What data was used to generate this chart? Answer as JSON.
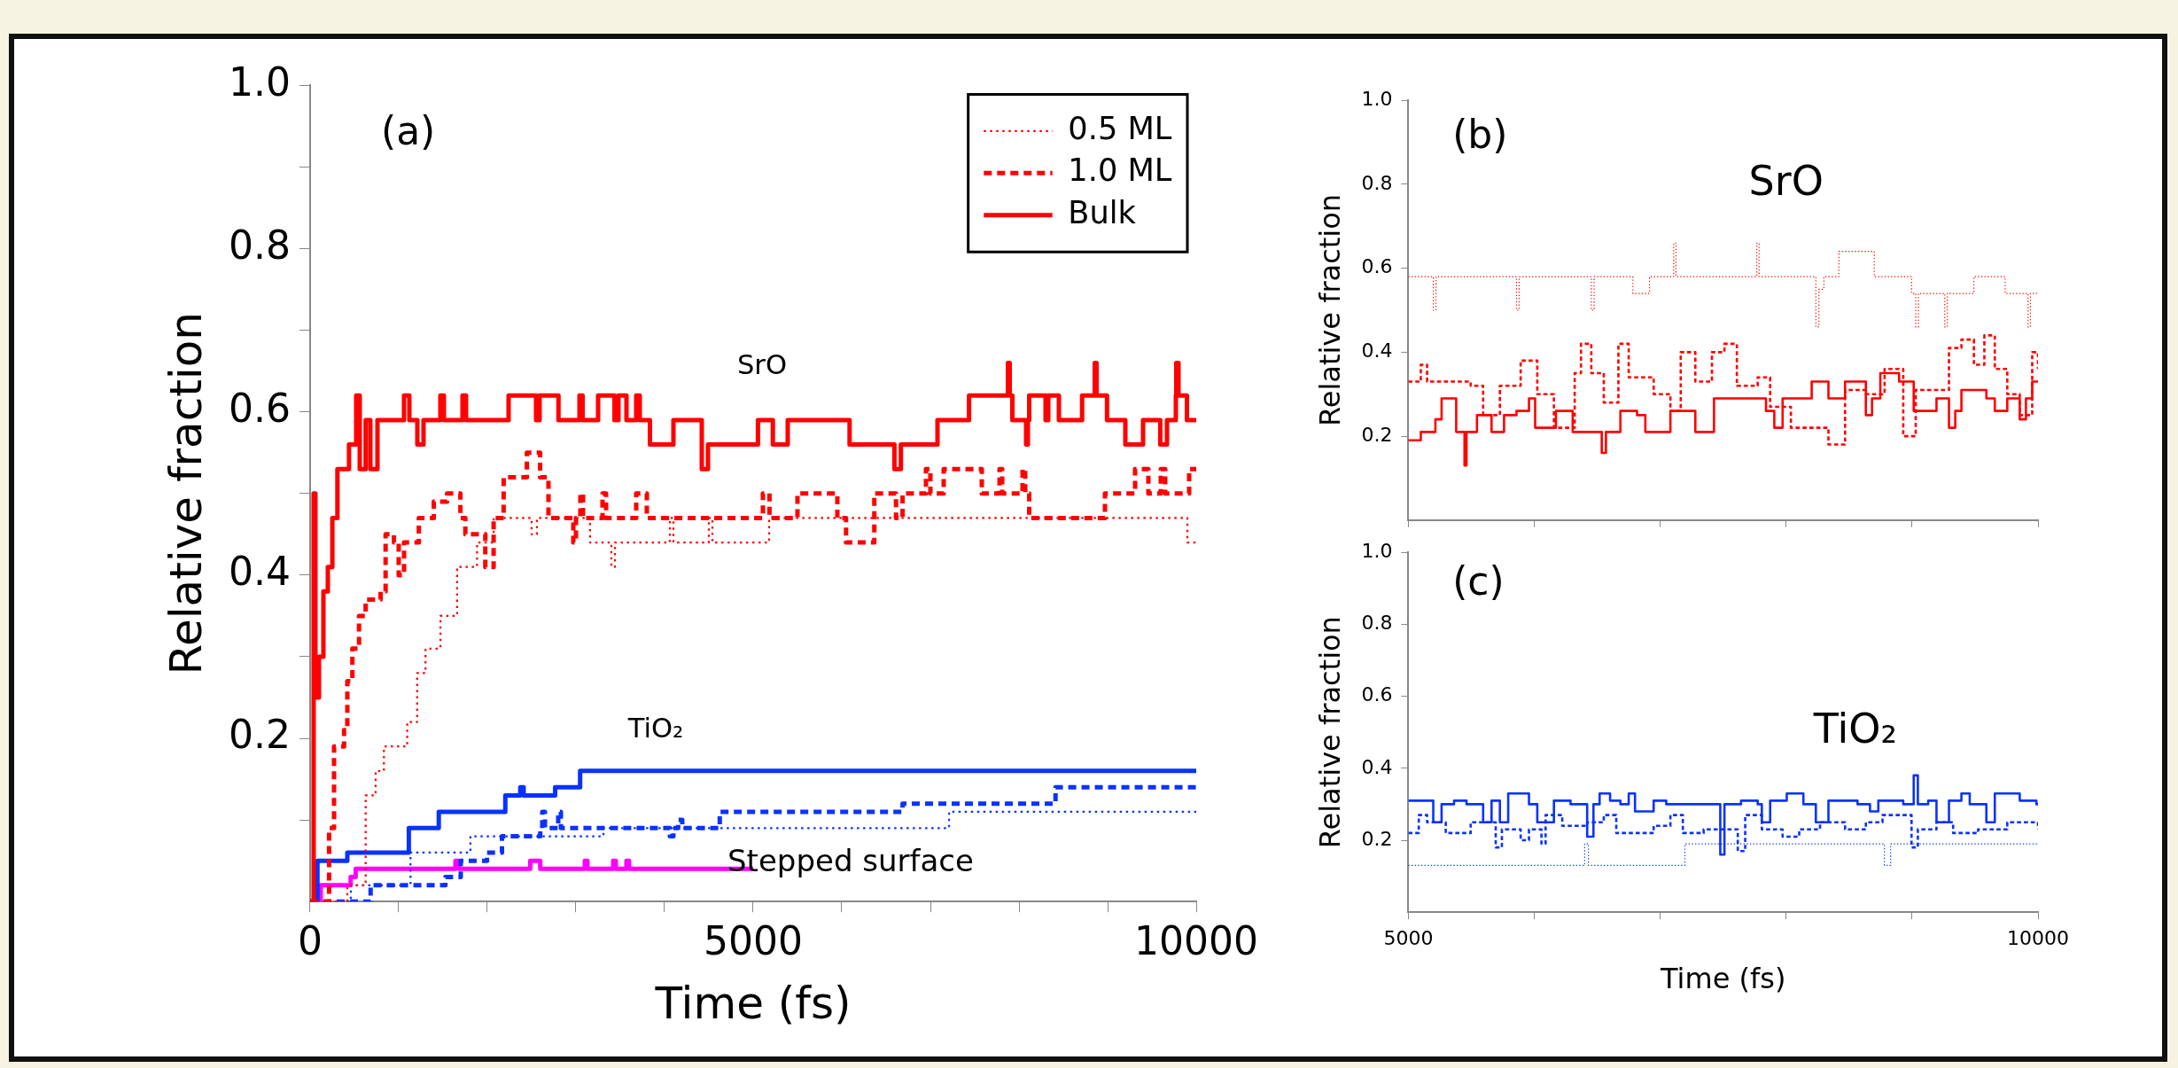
{
  "chart_data": [
    {
      "type": "step",
      "xlabel": "Time (fs)",
      "ylabel": "Relative fraction",
      "xlim": [
        0,
        10000
      ],
      "ylim": [
        0,
        1
      ],
      "xticks": [
        0,
        {
          "value": 1000,
          "label": null
        },
        {
          "value": 2000,
          "label": null
        },
        {
          "value": 3000,
          "label": null
        },
        {
          "value": 4000,
          "label": null
        },
        5000,
        {
          "value": 6000,
          "label": null
        },
        {
          "value": 7000,
          "label": null
        },
        {
          "value": 8000,
          "label": null
        },
        {
          "value": 9000,
          "label": null
        },
        10000
      ],
      "yticks": [
        {
          "value": 0.1,
          "label": null
        },
        0.2,
        {
          "value": 0.3,
          "label": null
        },
        0.4,
        {
          "value": 0.5,
          "label": null
        },
        0.6,
        {
          "value": 0.7,
          "label": null
        },
        0.8,
        {
          "value": 0.9,
          "label": null
        },
        {
          "value": 1,
          "label": "1.0"
        }
      ],
      "legend": "top right",
      "marker": "none",
      "annotations": [
        "(a)",
        "SrO",
        "TiO₂",
        "Stepped surface"
      ],
      "series": [
        {
          "name": "0.5 ML",
          "color": "#ff0000",
          "line_style": "dotted",
          "x": [
            0,
            420,
            627,
            739,
            833,
            1096,
            1208,
            1302,
            1471,
            1659,
            1884,
            2071,
            2500,
            2560,
            3159,
            3400,
            3440,
            4060,
            4100,
            4500,
            4540,
            5180,
            9900,
            10000
          ],
          "values": [
            0,
            0.02,
            0.13,
            0.16,
            0.19,
            0.22,
            0.28,
            0.31,
            0.35,
            0.41,
            0.44,
            0.47,
            0.45,
            0.47,
            0.44,
            0.41,
            0.44,
            0.47,
            0.44,
            0.47,
            0.44,
            0.47,
            0.44,
            0.44
          ]
        },
        {
          "name": "1.0 ML",
          "color": "#ff0000",
          "line_style": "dashed",
          "x": [
            0,
            214,
            270,
            383,
            420,
            477,
            552,
            627,
            795,
            852,
            946,
            1000,
            1060,
            1227,
            1396,
            1546,
            1696,
            1752,
            1977,
            2071,
            2184,
            2446,
            2596,
            2690,
            2970,
            3000,
            3050,
            3080,
            3300,
            3340,
            3680,
            3800,
            5110,
            5184,
            5500,
            5950,
            6048,
            6367,
            6612,
            6686,
            6950,
            7000,
            7150,
            7580,
            7780,
            7810,
            8040,
            8070,
            8115,
            8970,
            9310,
            9460,
            9600,
            9650,
            9920,
            10000
          ],
          "values": [
            0,
            0.09,
            0.19,
            0.21,
            0.27,
            0.31,
            0.35,
            0.37,
            0.38,
            0.45,
            0.44,
            0.4,
            0.44,
            0.47,
            0.49,
            0.5,
            0.47,
            0.45,
            0.41,
            0.47,
            0.52,
            0.55,
            0.52,
            0.47,
            0.44,
            0.47,
            0.5,
            0.47,
            0.5,
            0.47,
            0.5,
            0.47,
            0.5,
            0.47,
            0.5,
            0.47,
            0.44,
            0.5,
            0.47,
            0.5,
            0.53,
            0.5,
            0.53,
            0.5,
            0.53,
            0.5,
            0.53,
            0.5,
            0.47,
            0.5,
            0.53,
            0.5,
            0.53,
            0.5,
            0.53,
            0.53
          ]
        },
        {
          "name": "Bulk",
          "color": "#ff0000",
          "line_style": "solid",
          "x": [
            0,
            40,
            60,
            100,
            150,
            200,
            251,
            308,
            439,
            520,
            560,
            627,
            680,
            760,
            1060,
            1120,
            1210,
            1280,
            1470,
            1510,
            1720,
            1760,
            2240,
            2550,
            2590,
            2803,
            3040,
            3075,
            3250,
            3435,
            3480,
            3570,
            3680,
            3720,
            3835,
            4100,
            4420,
            4490,
            5054,
            5222,
            5390,
            6088,
            6594,
            6667,
            7080,
            7436,
            7875,
            7895,
            7925,
            8080,
            8100,
            8115,
            8300,
            8330,
            8450,
            8712,
            8855,
            8875,
            8993,
            9200,
            9400,
            9594,
            9670,
            9770,
            9775,
            9800,
            9895,
            10000
          ],
          "values": [
            0,
            0.5,
            0.25,
            0.3,
            0.38,
            0.41,
            0.47,
            0.53,
            0.56,
            0.62,
            0.53,
            0.59,
            0.53,
            0.59,
            0.62,
            0.59,
            0.56,
            0.59,
            0.62,
            0.59,
            0.62,
            0.59,
            0.62,
            0.59,
            0.62,
            0.59,
            0.62,
            0.59,
            0.62,
            0.59,
            0.62,
            0.59,
            0.62,
            0.59,
            0.56,
            0.59,
            0.53,
            0.56,
            0.59,
            0.56,
            0.59,
            0.56,
            0.53,
            0.56,
            0.59,
            0.62,
            0.66,
            0.62,
            0.59,
            0.56,
            0.59,
            0.62,
            0.59,
            0.62,
            0.59,
            0.62,
            0.66,
            0.62,
            0.59,
            0.56,
            0.59,
            0.56,
            0.59,
            0.62,
            0.66,
            0.62,
            0.59,
            0.59
          ]
        },
        {
          "color": "#0a32ff",
          "line_style": "dotted",
          "x": [
            0,
            460,
            1133,
            1809,
            3310,
            7211,
            10000
          ],
          "values": [
            0,
            0.02,
            0.06,
            0.08,
            0.09,
            0.11,
            0.11
          ]
        },
        {
          "color": "#0a32ff",
          "line_style": "dashed",
          "x": [
            0,
            683,
            1527,
            1700,
            1996,
            2165,
            2597,
            2620,
            2650,
            2800,
            2830,
            4060,
            4100,
            4154,
            4200,
            4623,
            6686,
            8412,
            10000
          ],
          "values": [
            0,
            0.02,
            0.03,
            0.05,
            0.06,
            0.08,
            0.09,
            0.11,
            0.09,
            0.11,
            0.09,
            0.08,
            0.09,
            0.1,
            0.09,
            0.11,
            0.12,
            0.14,
            0.14
          ]
        },
        {
          "color": "#0a32ff",
          "line_style": "solid",
          "x": [
            0,
            83,
            420,
            1114,
            1452,
            2203,
            2372,
            2410,
            2765,
            3047,
            10000
          ],
          "values": [
            0,
            0.05,
            0.06,
            0.09,
            0.11,
            0.13,
            0.14,
            0.13,
            0.14,
            0.16,
            0.16
          ]
        },
        {
          "color": "#ff00ff",
          "line_style": "solid",
          "x": [
            0,
            120,
            458,
            514,
            1640,
            1680,
            2484,
            2597,
            3100,
            3130,
            3420,
            3450,
            3570,
            3600,
            5000
          ],
          "values": [
            0,
            0.02,
            0.03,
            0.04,
            0.05,
            0.04,
            0.05,
            0.04,
            0.05,
            0.04,
            0.05,
            0.04,
            0.05,
            0.04,
            0.04
          ]
        }
      ]
    },
    {
      "type": "step",
      "ylabel": "Relative fraction",
      "xlim": [
        5000,
        10000
      ],
      "ylim": [
        0,
        1
      ],
      "tick_labels": "y",
      "marker": "none",
      "xticks": [
        5000,
        6000,
        7000,
        8000,
        9000,
        10000
      ],
      "yticks": [
        0.2,
        0.4,
        0.6,
        0.8,
        {
          "value": 1,
          "label": "1.0"
        }
      ],
      "annotations": [
        "(b)",
        "SrO"
      ],
      "series": [
        {
          "color": "#ff0000",
          "line_style": "dotted",
          "x": [
            5000,
            5198,
            5220,
            5859,
            5880,
            6453,
            6475,
            6783,
            6915,
            7107,
            7125,
            7767,
            7785,
            8236,
            8260,
            8300,
            8419,
            8700,
            8996,
            9029,
            9050,
            9260,
            9280,
            9491,
            9739,
            9921,
            9940,
            10000
          ],
          "values": [
            0.58,
            0.5,
            0.58,
            0.5,
            0.58,
            0.5,
            0.58,
            0.54,
            0.58,
            0.66,
            0.58,
            0.66,
            0.58,
            0.46,
            0.55,
            0.58,
            0.64,
            0.58,
            0.54,
            0.46,
            0.54,
            0.46,
            0.54,
            0.58,
            0.54,
            0.46,
            0.54,
            0.54
          ]
        },
        {
          "color": "#ff0000",
          "line_style": "dashed",
          "x": [
            5000,
            5099,
            5149,
            5495,
            5594,
            5727,
            5892,
            6024,
            6156,
            6321,
            6371,
            6453,
            6552,
            6668,
            6750,
            6948,
            7081,
            7163,
            7279,
            7411,
            7510,
            7609,
            7774,
            7873,
            8038,
            8336,
            8468,
            8633,
            8782,
            8930,
            9029,
            9293,
            9392,
            9491,
            9574,
            9657,
            9756,
            9855,
            9954,
            10000
          ],
          "values": [
            0.33,
            0.37,
            0.33,
            0.32,
            0.25,
            0.32,
            0.38,
            0.3,
            0.22,
            0.35,
            0.42,
            0.35,
            0.28,
            0.42,
            0.34,
            0.3,
            0.26,
            0.4,
            0.33,
            0.4,
            0.42,
            0.32,
            0.34,
            0.27,
            0.22,
            0.18,
            0.31,
            0.3,
            0.36,
            0.2,
            0.31,
            0.41,
            0.43,
            0.37,
            0.44,
            0.36,
            0.3,
            0.25,
            0.4,
            0.36
          ]
        },
        {
          "color": "#ff0000",
          "line_style": "solid",
          "x": [
            5000,
            5099,
            5215,
            5264,
            5380,
            5446,
            5462,
            5545,
            5661,
            5760,
            5859,
            5958,
            6007,
            6172,
            6305,
            6536,
            6569,
            6684,
            6816,
            6882,
            7081,
            7279,
            7427,
            7840,
            7906,
            7972,
            8203,
            8336,
            8468,
            8633,
            8682,
            8748,
            8897,
            9013,
            9194,
            9293,
            9343,
            9392,
            9590,
            9657,
            9756,
            9855,
            9904,
            9954,
            10000
          ],
          "values": [
            0.19,
            0.21,
            0.24,
            0.29,
            0.21,
            0.13,
            0.21,
            0.25,
            0.21,
            0.25,
            0.26,
            0.29,
            0.22,
            0.26,
            0.21,
            0.16,
            0.21,
            0.26,
            0.25,
            0.21,
            0.26,
            0.21,
            0.29,
            0.26,
            0.22,
            0.29,
            0.33,
            0.29,
            0.33,
            0.25,
            0.29,
            0.35,
            0.33,
            0.26,
            0.29,
            0.22,
            0.26,
            0.31,
            0.29,
            0.26,
            0.29,
            0.24,
            0.29,
            0.33,
            0.33
          ]
        }
      ]
    },
    {
      "type": "step",
      "xlabel": "Time (fs)",
      "ylabel": "Relative fraction",
      "xlim": [
        5000,
        10000
      ],
      "ylim": [
        0,
        1
      ],
      "marker": "none",
      "xticks": [
        5000,
        {
          "value": 6000,
          "label": null
        },
        {
          "value": 7000,
          "label": null
        },
        {
          "value": 8000,
          "label": null
        },
        {
          "value": 9000,
          "label": null
        },
        10000
      ],
      "yticks": [
        0.2,
        0.4,
        0.6,
        0.8,
        {
          "value": 1,
          "label": "1.0"
        }
      ],
      "annotations": [
        "(c)",
        "TiO₂"
      ],
      "series": [
        {
          "color": "#0a32ff",
          "line_style": "dotted",
          "x": [
            5000,
            6400,
            6430,
            7196,
            8780,
            8830,
            10000
          ],
          "values": [
            0.13,
            0.19,
            0.13,
            0.19,
            0.13,
            0.19,
            0.19
          ]
        },
        {
          "color": "#0a32ff",
          "line_style": "dashed",
          "x": [
            5000,
            5083,
            5149,
            5297,
            5495,
            5694,
            5743,
            5892,
            5958,
            6057,
            6090,
            6222,
            6420,
            6552,
            6651,
            6948,
            7081,
            7180,
            7345,
            7616,
            7675,
            7807,
            7972,
            8104,
            8269,
            8468,
            8633,
            8765,
            8996,
            9046,
            9194,
            9326,
            9524,
            9756,
            10000
          ],
          "values": [
            0.22,
            0.27,
            0.25,
            0.22,
            0.25,
            0.18,
            0.23,
            0.2,
            0.23,
            0.19,
            0.27,
            0.24,
            0.25,
            0.27,
            0.22,
            0.24,
            0.27,
            0.22,
            0.23,
            0.17,
            0.27,
            0.23,
            0.21,
            0.23,
            0.25,
            0.23,
            0.25,
            0.27,
            0.18,
            0.23,
            0.25,
            0.22,
            0.23,
            0.25,
            0.23
          ]
        },
        {
          "color": "#0a32ff",
          "line_style": "solid",
          "x": [
            5000,
            5198,
            5264,
            5363,
            5462,
            5594,
            5661,
            5727,
            5793,
            5958,
            6024,
            6156,
            6288,
            6420,
            6470,
            6519,
            6602,
            6684,
            6750,
            6800,
            6948,
            7048,
            7477,
            7510,
            7642,
            7774,
            7807,
            7873,
            8005,
            8137,
            8236,
            8336,
            8567,
            8666,
            8732,
            8930,
            9013,
            9046,
            9128,
            9194,
            9293,
            9392,
            9458,
            9590,
            9657,
            9855,
            9987,
            10000
          ],
          "values": [
            0.31,
            0.25,
            0.3,
            0.31,
            0.3,
            0.25,
            0.31,
            0.25,
            0.33,
            0.3,
            0.25,
            0.31,
            0.3,
            0.21,
            0.3,
            0.33,
            0.31,
            0.3,
            0.33,
            0.28,
            0.31,
            0.3,
            0.16,
            0.3,
            0.31,
            0.3,
            0.25,
            0.31,
            0.33,
            0.3,
            0.25,
            0.31,
            0.3,
            0.28,
            0.31,
            0.3,
            0.38,
            0.3,
            0.31,
            0.25,
            0.31,
            0.33,
            0.3,
            0.25,
            0.33,
            0.31,
            0.3,
            0.3
          ]
        }
      ]
    }
  ]
}
